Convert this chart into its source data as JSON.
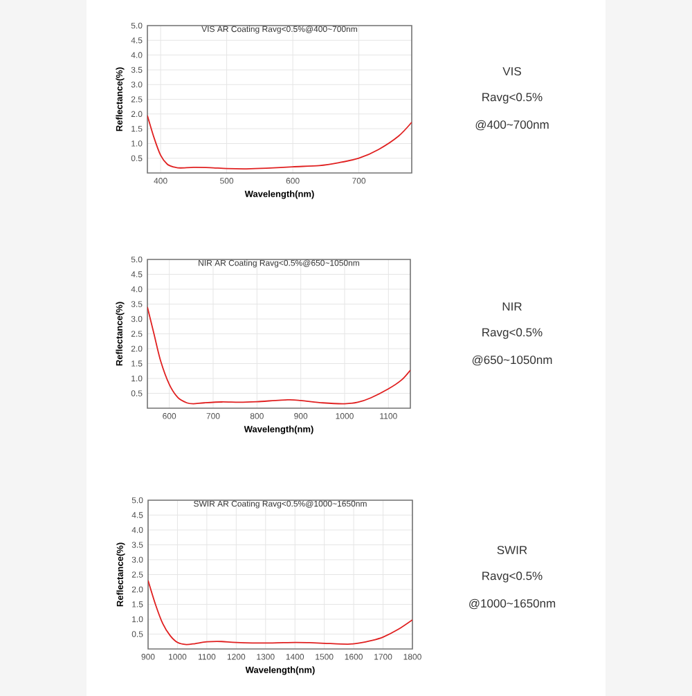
{
  "chart_data": [
    {
      "type": "line",
      "title": "VIS AR Coating Ravg<0.5%@400~700nm",
      "xlabel": "Wavelength(nm)",
      "ylabel": "Reflectance(%)",
      "xlim": [
        380,
        780
      ],
      "ylim": [
        0,
        5
      ],
      "xticks": [
        400,
        500,
        600,
        700
      ],
      "yticks": [
        0.5,
        {
          "value": 1.0,
          "label": "1.0"
        },
        1.5,
        {
          "value": 2.0,
          "label": "2.0"
        },
        2.5,
        {
          "value": 3.0,
          "label": "3.0"
        },
        3.5,
        {
          "value": 4.0,
          "label": "4.0"
        },
        4.5,
        {
          "value": 5.0,
          "label": "5.0"
        }
      ],
      "grid": true,
      "color": "#e02020",
      "x": [
        380,
        390,
        400,
        410,
        420,
        430,
        450,
        475,
        500,
        530,
        560,
        600,
        640,
        670,
        700,
        730,
        760,
        780
      ],
      "values": [
        1.95,
        1.2,
        0.6,
        0.3,
        0.2,
        0.17,
        0.19,
        0.18,
        0.15,
        0.14,
        0.16,
        0.21,
        0.25,
        0.35,
        0.5,
        0.8,
        1.25,
        1.72
      ]
    },
    {
      "type": "other",
      "title": "VIS",
      "annotations": [
        "Ravg<0.5%",
        "@400~700nm"
      ]
    },
    {
      "type": "line",
      "title": "NIR AR Coating Ravg<0.5%@650~1050nm",
      "xlabel": "Wavelength(nm)",
      "ylabel": "Reflectance(%)",
      "xlim": [
        550,
        1150
      ],
      "ylim": [
        0,
        5
      ],
      "xticks": [
        600,
        700,
        800,
        900,
        1000,
        1100
      ],
      "yticks": [
        0.5,
        {
          "value": 1.0,
          "label": "1.0"
        },
        1.5,
        {
          "value": 2.0,
          "label": "2.0"
        },
        2.5,
        {
          "value": 3.0,
          "label": "3.0"
        },
        3.5,
        {
          "value": 4.0,
          "label": "4.0"
        },
        4.5,
        {
          "value": 5.0,
          "label": "5.0"
        }
      ],
      "grid": true,
      "color": "#e02020",
      "x": [
        550,
        565,
        580,
        600,
        620,
        640,
        655,
        680,
        720,
        760,
        800,
        870,
        900,
        950,
        1000,
        1030,
        1060,
        1100,
        1130,
        1150
      ],
      "values": [
        3.4,
        2.5,
        1.6,
        0.8,
        0.35,
        0.18,
        0.15,
        0.18,
        0.21,
        0.2,
        0.22,
        0.28,
        0.26,
        0.18,
        0.15,
        0.2,
        0.35,
        0.65,
        0.95,
        1.28
      ]
    },
    {
      "type": "other",
      "title": "NIR",
      "annotations": [
        "Ravg<0.5%",
        "@650~1050nm"
      ]
    },
    {
      "type": "line",
      "title": "SWIR AR Coating Ravg<0.5%@1000~1650nm",
      "xlabel": "Wavelength(nm)",
      "ylabel": "Reflectance(%)",
      "xlim": [
        900,
        1800
      ],
      "ylim": [
        0,
        5
      ],
      "xticks": [
        900,
        1000,
        1100,
        1200,
        1300,
        1400,
        1500,
        1600,
        1700,
        1800
      ],
      "yticks": [
        0.5,
        {
          "value": 1.0,
          "label": "1.0"
        },
        1.5,
        {
          "value": 2.0,
          "label": "2.0"
        },
        2.5,
        {
          "value": 3.0,
          "label": "3.0"
        },
        3.5,
        {
          "value": 4.0,
          "label": "4.0"
        },
        4.5,
        {
          "value": 5.0,
          "label": "5.0"
        }
      ],
      "grid": true,
      "color": "#e02020",
      "x": [
        900,
        925,
        950,
        975,
        1000,
        1030,
        1060,
        1100,
        1150,
        1200,
        1300,
        1400,
        1450,
        1500,
        1580,
        1620,
        1660,
        1700,
        1750,
        1800
      ],
      "values": [
        2.3,
        1.5,
        0.85,
        0.45,
        0.22,
        0.15,
        0.18,
        0.24,
        0.25,
        0.22,
        0.2,
        0.22,
        0.21,
        0.19,
        0.16,
        0.2,
        0.28,
        0.4,
        0.65,
        0.98
      ]
    },
    {
      "type": "other",
      "title": "SWIR",
      "annotations": [
        "Ravg<0.5%",
        "@1000~1650nm"
      ]
    }
  ]
}
